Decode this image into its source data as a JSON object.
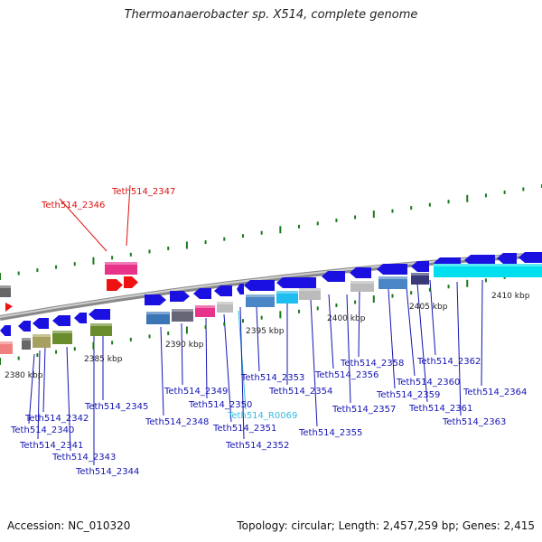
{
  "title": "Thermoanaerobacter sp. X514, complete genome",
  "footer": {
    "accession": "Accession: NC_010320",
    "summary": "Topology: circular; Length: 2,457,259 bp; Genes: 2,415"
  },
  "colors": {
    "arrow_blue": "#1a10e0",
    "label_blue": "#1414b4",
    "label_red": "#dd1111",
    "label_cyan": "#33bbdd",
    "highlight_red": "#ee1111",
    "highlight_pink": "#e8338a",
    "rrna_cyan": "#00dfef",
    "backbone": "#999999",
    "tick_green": "#1a7a1a"
  },
  "scale_labels": [
    "2380 kbp",
    "2385 kbp",
    "2390 kbp",
    "2395 kbp",
    "2400 kbp",
    "2405 kbp",
    "2410 kbp"
  ],
  "gene_labels": [
    "Teth514_2340",
    "Teth514_2341",
    "Teth514_2342",
    "Teth514_2343",
    "Teth514_2344",
    "Teth514_2345",
    "Teth514_2346",
    "Teth514_2347",
    "Teth514_2348",
    "Teth514_2349",
    "Teth514_2350",
    "Teth514_2351",
    "Teth514_R0069",
    "Teth514_2352",
    "Teth514_2353",
    "Teth514_2354",
    "Teth514_2355",
    "Teth514_2356",
    "Teth514_2357",
    "Teth514_2358",
    "Teth514_2359",
    "Teth514_2360",
    "Teth514_2361",
    "Teth514_2362",
    "Teth514_2363",
    "Teth514_2364"
  ]
}
